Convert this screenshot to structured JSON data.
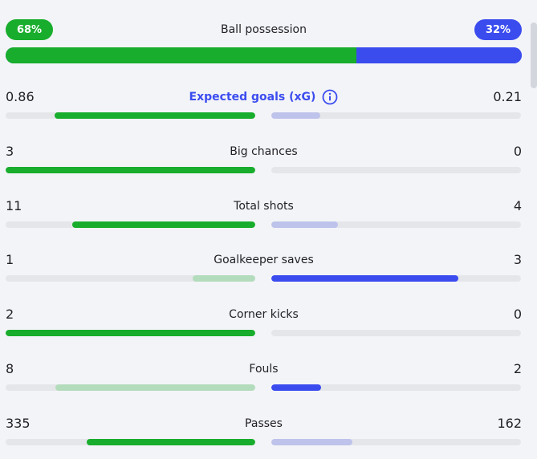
{
  "possession": {
    "label": "Ball possession",
    "home": "68%",
    "away": "32%",
    "home_fraction": 0.68
  },
  "stats": [
    {
      "label": "Expected goals (xG)",
      "home": "0.86",
      "away": "0.21",
      "home_fraction": 0.804,
      "away_fraction": 0.196,
      "winner": "home",
      "link": true,
      "info_icon": "info-icon"
    },
    {
      "label": "Big chances",
      "home": "3",
      "away": "0",
      "home_fraction": 1.0,
      "away_fraction": 0.0,
      "winner": "home"
    },
    {
      "label": "Total shots",
      "home": "11",
      "away": "4",
      "home_fraction": 0.733,
      "away_fraction": 0.267,
      "winner": "home"
    },
    {
      "label": "Goalkeeper saves",
      "home": "1",
      "away": "3",
      "home_fraction": 0.25,
      "away_fraction": 0.75,
      "winner": "away"
    },
    {
      "label": "Corner kicks",
      "home": "2",
      "away": "0",
      "home_fraction": 1.0,
      "away_fraction": 0.0,
      "winner": "home"
    },
    {
      "label": "Fouls",
      "home": "8",
      "away": "2",
      "home_fraction": 0.8,
      "away_fraction": 0.2,
      "winner": "away"
    },
    {
      "label": "Passes",
      "home": "335",
      "away": "162",
      "home_fraction": 0.674,
      "away_fraction": 0.326,
      "winner": "home"
    }
  ],
  "colors": {
    "home": "#18ad2c",
    "home_light": "#b3dcbc",
    "away": "#3b4cef",
    "away_light": "#bec3eb",
    "link": "#3b4cef"
  }
}
